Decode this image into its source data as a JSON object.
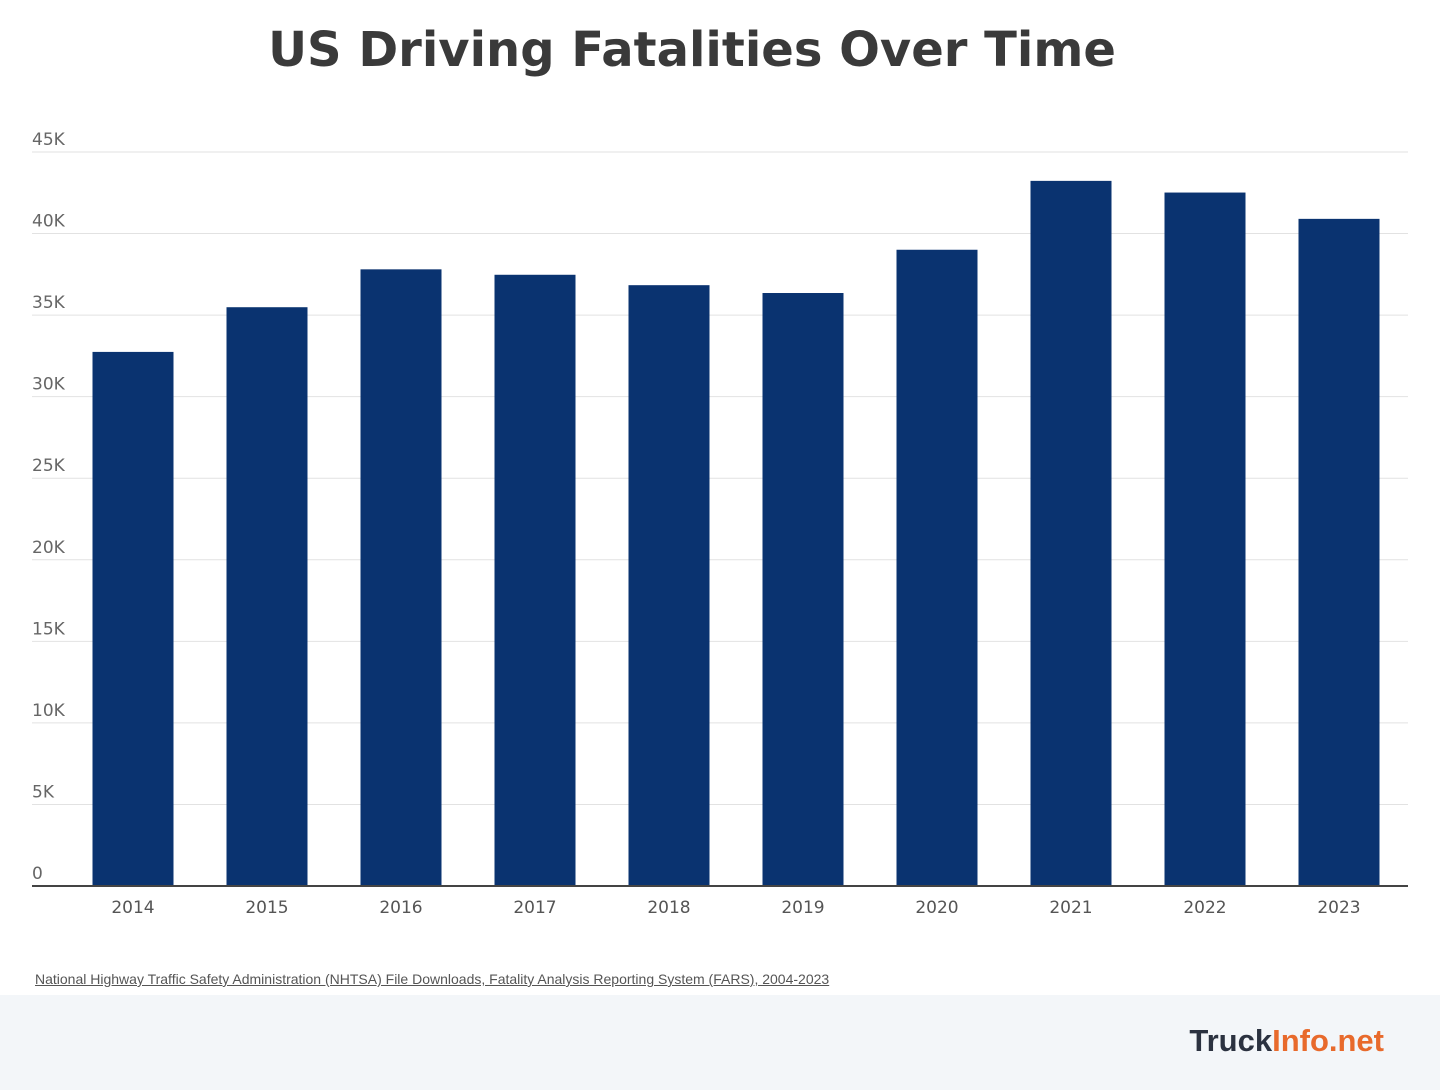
{
  "chart_data": {
    "type": "bar",
    "title": "US Driving Fatalities Over Time",
    "xlabel": "",
    "ylabel": "",
    "categories": [
      "2014",
      "2015",
      "2016",
      "2017",
      "2018",
      "2019",
      "2020",
      "2021",
      "2022",
      "2023"
    ],
    "values": [
      32744,
      35484,
      37806,
      37473,
      36835,
      36355,
      39007,
      43230,
      42514,
      40901
    ],
    "ylim": [
      0,
      45000
    ],
    "yticks": [
      0,
      5000,
      10000,
      15000,
      20000,
      25000,
      30000,
      35000,
      40000,
      45000
    ],
    "ytick_labels": [
      "0",
      "5K",
      "10K",
      "15K",
      "20K",
      "25K",
      "30K",
      "35K",
      "40K",
      "45K"
    ],
    "grid": true,
    "legend": "none",
    "bar_color": "#0a3370"
  },
  "source": "National Highway Traffic Safety Administration (NHTSA) File Downloads, Fatality Analysis Reporting System (FARS), 2004-2023",
  "logo": {
    "part1": "Truck",
    "part2": "Info.net",
    "colors": [
      "#2b3240",
      "#e86a2c"
    ]
  }
}
